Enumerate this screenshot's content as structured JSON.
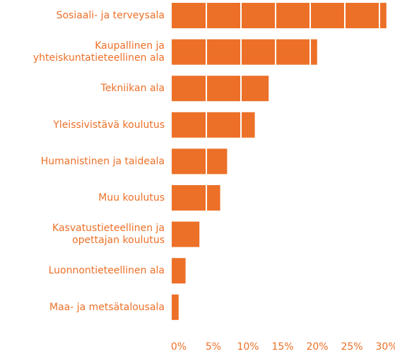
{
  "chart_data": {
    "type": "bar",
    "orientation": "horizontal",
    "categories": [
      "Sosiaali- ja terveysala",
      "Kaupallinen ja\nyhteiskuntatieteellinen ala",
      "Tekniikan ala",
      "Yleissivistävä koulutus",
      "Humanistinen ja taideala",
      "Muu koulutus",
      "Kasvatustieteellinen ja\nopettajan koulutus",
      "Luonnontieteellinen ala",
      "Maa- ja metsätalousala"
    ],
    "values": [
      31,
      21,
      14,
      12,
      8,
      7,
      4,
      2,
      1
    ],
    "color": "#ec7028",
    "xlim": [
      0,
      32
    ],
    "xticks": [
      {
        "value": 0,
        "label": "0%"
      },
      {
        "value": 5,
        "label": "5%"
      },
      {
        "value": 10,
        "label": "10%"
      },
      {
        "value": 15,
        "label": "15%"
      },
      {
        "value": 20,
        "label": "20%"
      },
      {
        "value": 25,
        "label": "25%"
      },
      {
        "value": 30,
        "label": "30%"
      }
    ],
    "grid": true
  }
}
